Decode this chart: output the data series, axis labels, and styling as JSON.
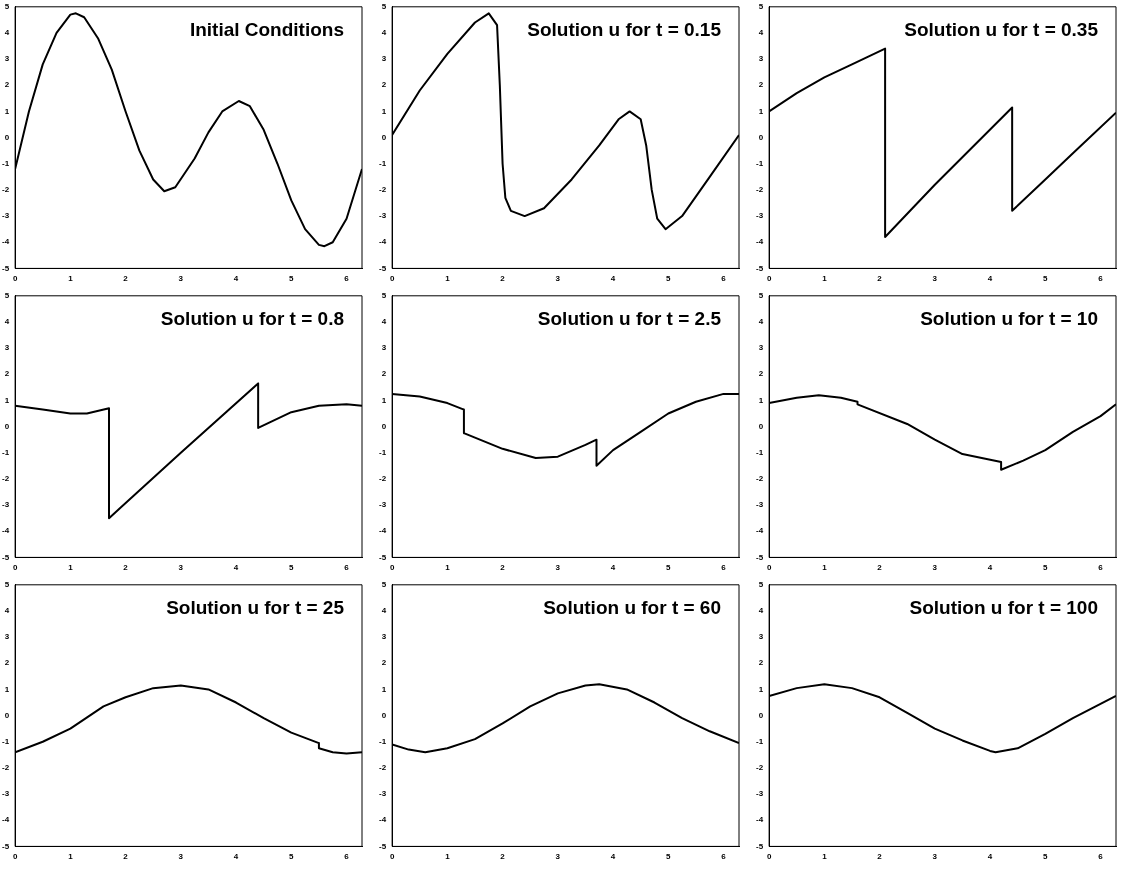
{
  "chart_data": [
    {
      "type": "line",
      "title": "Initial Conditions",
      "x": [
        0,
        0.25,
        0.5,
        0.75,
        1.0,
        1.1,
        1.25,
        1.5,
        1.75,
        2.0,
        2.25,
        2.5,
        2.7,
        2.9,
        3.25,
        3.5,
        3.75,
        4.05,
        4.25,
        4.5,
        4.75,
        5.0,
        5.25,
        5.5,
        5.6,
        5.75,
        6.0,
        6.28
      ],
      "series": [
        {
          "color": "#000000",
          "values": [
            -1.2,
            1.0,
            2.8,
            4.0,
            4.7,
            4.75,
            4.6,
            3.8,
            2.6,
            1.0,
            -0.5,
            -1.6,
            -2.05,
            -1.9,
            -0.8,
            0.2,
            1.0,
            1.4,
            1.2,
            0.3,
            -1.0,
            -2.4,
            -3.5,
            -4.1,
            -4.15,
            -4.0,
            -3.1,
            -1.2
          ]
        }
      ],
      "xlim": [
        0,
        6.28
      ],
      "ylim": [
        -5,
        5
      ],
      "xticks": [
        0,
        1,
        2,
        3,
        4,
        5,
        6
      ],
      "yticks": [
        -5,
        -4,
        -3,
        -2,
        -1,
        0,
        1,
        2,
        3,
        4,
        5
      ],
      "grid": false,
      "marker": "none"
    },
    {
      "type": "line",
      "title": "Solution u for t = 0.15",
      "x": [
        0,
        0.5,
        1.0,
        1.5,
        1.75,
        1.9,
        1.95,
        2.0,
        2.05,
        2.15,
        2.4,
        2.75,
        3.25,
        3.75,
        4.1,
        4.3,
        4.5,
        4.6,
        4.7,
        4.8,
        4.95,
        5.25,
        5.75,
        6.28
      ],
      "series": [
        {
          "color": "#000000",
          "values": [
            0.1,
            1.8,
            3.2,
            4.4,
            4.75,
            4.3,
            2.0,
            -1.0,
            -2.3,
            -2.8,
            -3.0,
            -2.7,
            -1.6,
            -0.3,
            0.7,
            1.0,
            0.7,
            -0.3,
            -2.0,
            -3.1,
            -3.5,
            -3.0,
            -1.5,
            0.1
          ]
        }
      ],
      "xlim": [
        0,
        6.28
      ],
      "ylim": [
        -5,
        5
      ],
      "xticks": [
        0,
        1,
        2,
        3,
        4,
        5,
        6
      ],
      "yticks": [
        -5,
        -4,
        -3,
        -2,
        -1,
        0,
        1,
        2,
        3,
        4,
        5
      ],
      "grid": false,
      "marker": "none"
    },
    {
      "type": "line",
      "title": "Solution u for t = 0.35",
      "x": [
        0,
        0.5,
        1.0,
        1.5,
        2.1,
        2.1,
        3.0,
        4.4,
        4.4,
        5.0,
        5.5,
        6.28
      ],
      "series": [
        {
          "color": "#000000",
          "values": [
            1.0,
            1.7,
            2.3,
            2.8,
            3.4,
            -3.8,
            -1.8,
            1.15,
            -2.8,
            -1.6,
            -0.6,
            0.95
          ]
        }
      ],
      "xlim": [
        0,
        6.28
      ],
      "ylim": [
        -5,
        5
      ],
      "xticks": [
        0,
        1,
        2,
        3,
        4,
        5,
        6
      ],
      "yticks": [
        -5,
        -4,
        -3,
        -2,
        -1,
        0,
        1,
        2,
        3,
        4,
        5
      ],
      "grid": false,
      "marker": "none"
    },
    {
      "type": "line",
      "title": "Solution u for t = 0.8",
      "x": [
        0,
        0.5,
        1.0,
        1.3,
        1.7,
        1.7,
        3.0,
        4.4,
        4.4,
        5.0,
        5.5,
        6.0,
        6.28
      ],
      "series": [
        {
          "color": "#000000",
          "values": [
            0.8,
            0.65,
            0.5,
            0.5,
            0.7,
            -3.5,
            -1.0,
            1.65,
            -0.05,
            0.55,
            0.8,
            0.85,
            0.8
          ]
        }
      ],
      "xlim": [
        0,
        6.28
      ],
      "ylim": [
        -5,
        5
      ],
      "xticks": [
        0,
        1,
        2,
        3,
        4,
        5,
        6
      ],
      "yticks": [
        -5,
        -4,
        -3,
        -2,
        -1,
        0,
        1,
        2,
        3,
        4,
        5
      ],
      "grid": false,
      "marker": "none"
    },
    {
      "type": "line",
      "title": "Solution u for t = 2.5",
      "x": [
        0,
        0.5,
        1.0,
        1.3,
        1.3,
        2.0,
        2.6,
        3.0,
        3.5,
        3.7,
        3.7,
        4.0,
        4.5,
        5.0,
        5.5,
        6.0,
        6.28
      ],
      "series": [
        {
          "color": "#000000",
          "values": [
            1.25,
            1.15,
            0.9,
            0.65,
            -0.25,
            -0.85,
            -1.2,
            -1.15,
            -0.7,
            -0.5,
            -1.5,
            -0.9,
            -0.2,
            0.5,
            0.95,
            1.25,
            1.25
          ]
        }
      ],
      "xlim": [
        0,
        6.28
      ],
      "ylim": [
        -5,
        5
      ],
      "xticks": [
        0,
        1,
        2,
        3,
        4,
        5,
        6
      ],
      "yticks": [
        -5,
        -4,
        -3,
        -2,
        -1,
        0,
        1,
        2,
        3,
        4,
        5
      ],
      "grid": false,
      "marker": "none"
    },
    {
      "type": "line",
      "title": "Solution u for t = 10",
      "x": [
        0,
        0.5,
        0.9,
        1.3,
        1.6,
        1.6,
        2.5,
        3.0,
        3.5,
        4.2,
        4.2,
        4.6,
        5.0,
        5.5,
        6.0,
        6.28
      ],
      "series": [
        {
          "color": "#000000",
          "values": [
            0.9,
            1.1,
            1.2,
            1.1,
            0.95,
            0.85,
            0.1,
            -0.5,
            -1.05,
            -1.35,
            -1.65,
            -1.3,
            -0.9,
            -0.2,
            0.4,
            0.85
          ]
        }
      ],
      "xlim": [
        0,
        6.28
      ],
      "ylim": [
        -5,
        5
      ],
      "xticks": [
        0,
        1,
        2,
        3,
        4,
        5,
        6
      ],
      "yticks": [
        -5,
        -4,
        -3,
        -2,
        -1,
        0,
        1,
        2,
        3,
        4,
        5
      ],
      "grid": false,
      "marker": "none"
    },
    {
      "type": "line",
      "title": "Solution u for t = 25",
      "x": [
        0,
        0.5,
        1.0,
        1.6,
        2.0,
        2.5,
        3.0,
        3.5,
        4.0,
        4.5,
        5.0,
        5.5,
        5.5,
        5.75,
        6.0,
        6.28
      ],
      "series": [
        {
          "color": "#000000",
          "values": [
            -1.4,
            -1.0,
            -0.5,
            0.35,
            0.7,
            1.05,
            1.15,
            1.0,
            0.5,
            -0.1,
            -0.65,
            -1.05,
            -1.25,
            -1.4,
            -1.45,
            -1.4
          ]
        }
      ],
      "xlim": [
        0,
        6.28
      ],
      "ylim": [
        -5,
        5
      ],
      "xticks": [
        0,
        1,
        2,
        3,
        4,
        5,
        6
      ],
      "yticks": [
        -5,
        -4,
        -3,
        -2,
        -1,
        0,
        1,
        2,
        3,
        4,
        5
      ],
      "grid": false,
      "marker": "none"
    },
    {
      "type": "line",
      "title": "Solution u for t = 60",
      "x": [
        0,
        0.3,
        0.6,
        1.0,
        1.5,
        2.0,
        2.5,
        3.0,
        3.5,
        3.75,
        4.25,
        4.75,
        5.25,
        5.75,
        6.28
      ],
      "series": [
        {
          "color": "#000000",
          "values": [
            -1.1,
            -1.3,
            -1.4,
            -1.25,
            -0.9,
            -0.3,
            0.35,
            0.85,
            1.15,
            1.2,
            1.0,
            0.5,
            -0.1,
            -0.6,
            -1.05
          ]
        }
      ],
      "xlim": [
        0,
        6.28
      ],
      "ylim": [
        -5,
        5
      ],
      "xticks": [
        0,
        1,
        2,
        3,
        4,
        5,
        6
      ],
      "yticks": [
        -5,
        -4,
        -3,
        -2,
        -1,
        0,
        1,
        2,
        3,
        4,
        5
      ],
      "grid": false,
      "marker": "none"
    },
    {
      "type": "line",
      "title": "Solution u for t = 100",
      "x": [
        0,
        0.5,
        1.0,
        1.5,
        2.0,
        2.5,
        3.0,
        3.5,
        4.0,
        4.1,
        4.5,
        5.0,
        5.5,
        6.0,
        6.28
      ],
      "series": [
        {
          "color": "#000000",
          "values": [
            0.75,
            1.05,
            1.2,
            1.05,
            0.7,
            0.1,
            -0.5,
            -0.95,
            -1.35,
            -1.4,
            -1.25,
            -0.7,
            -0.1,
            0.45,
            0.75
          ]
        }
      ],
      "xlim": [
        0,
        6.28
      ],
      "ylim": [
        -5,
        5
      ],
      "xticks": [
        0,
        1,
        2,
        3,
        4,
        5,
        6
      ],
      "yticks": [
        -5,
        -4,
        -3,
        -2,
        -1,
        0,
        1,
        2,
        3,
        4,
        5
      ],
      "grid": false,
      "marker": "none"
    }
  ]
}
